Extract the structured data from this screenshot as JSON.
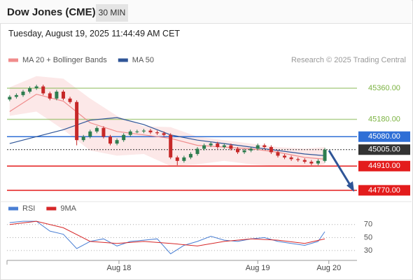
{
  "header": {
    "title": "Dow Jones (CME)",
    "timeframe": "30 MIN",
    "timestamp": "Tuesday, August 19, 2025 11:44:49 AM CET"
  },
  "chart_data": [
    {
      "type": "candlestick",
      "credit": "Research © 2025 Trading Central",
      "xlim": [
        -0.4,
        51.8
      ],
      "ylim": [
        44717,
        45465
      ],
      "up_color": "#2e7d4f",
      "down_color": "#c62828",
      "candles": {
        "open": [
          45295,
          45310,
          45320,
          45340,
          45360,
          45370,
          45330,
          45300,
          45340,
          45300,
          45280,
          45060,
          45080,
          45110,
          45130,
          45080,
          45040,
          45060,
          45090,
          45110,
          45110,
          45115,
          45105,
          45100,
          45090,
          44960,
          44940,
          44960,
          44980,
          45010,
          45030,
          45040,
          45020,
          45030,
          45010,
          44990,
          45000,
          45010,
          45030,
          45020,
          44990,
          44970,
          44960,
          44950,
          44945,
          44935,
          44925,
          44940
        ],
        "high": [
          45320,
          45330,
          45350,
          45370,
          45380,
          45380,
          45340,
          45350,
          45350,
          45310,
          45290,
          45090,
          45120,
          45140,
          45140,
          45090,
          45070,
          45100,
          45120,
          45120,
          45125,
          45125,
          45115,
          45110,
          45100,
          44970,
          44970,
          44990,
          45020,
          45040,
          45050,
          45050,
          45040,
          45040,
          45020,
          45010,
          45020,
          45040,
          45040,
          45030,
          45000,
          44980,
          44970,
          44960,
          44955,
          44945,
          44950,
          45015
        ],
        "low": [
          45285,
          45300,
          45310,
          45330,
          45350,
          45320,
          45290,
          45290,
          45290,
          45270,
          45030,
          45050,
          45070,
          45100,
          45070,
          45030,
          45030,
          45050,
          45080,
          45100,
          45100,
          45095,
          45090,
          45080,
          44950,
          44915,
          44930,
          44950,
          44970,
          45000,
          45020,
          45010,
          45010,
          45000,
          44980,
          44980,
          44990,
          45000,
          45010,
          44980,
          44960,
          44950,
          44940,
          44935,
          44925,
          44915,
          44915,
          44930
        ],
        "close": [
          45310,
          45320,
          45340,
          45360,
          45370,
          45330,
          45300,
          45340,
          45300,
          45280,
          45060,
          45080,
          45110,
          45130,
          45080,
          45040,
          45060,
          45090,
          45110,
          45110,
          45115,
          45105,
          45100,
          45090,
          44960,
          44940,
          44960,
          44980,
          45010,
          45030,
          45040,
          45020,
          45030,
          45010,
          44990,
          45000,
          45010,
          45030,
          45020,
          44990,
          44970,
          44960,
          44950,
          44945,
          44935,
          44925,
          44940,
          45005
        ]
      },
      "series": [
        {
          "name": "MA 20 + Bollinger Bands",
          "color": "#f08c8c",
          "x": [
            0,
            4,
            8,
            12,
            16,
            20,
            24,
            28,
            32,
            36,
            40,
            44,
            47
          ],
          "values": [
            45225,
            45325,
            45285,
            45160,
            45110,
            45090,
            45070,
            45030,
            45020,
            45010,
            44990,
            44960,
            44950
          ],
          "upper": [
            45365,
            45430,
            45415,
            45300,
            45200,
            45140,
            45135,
            45080,
            45060,
            45040,
            45020,
            45010,
            45020
          ],
          "lower": [
            45200,
            45225,
            45120,
            45000,
            44970,
            44980,
            44910,
            44920,
            44940,
            44920,
            44910,
            44900,
            44920
          ]
        },
        {
          "name": "MA 50",
          "color": "#2f5597",
          "x": [
            0,
            4,
            8,
            12,
            16,
            20,
            24,
            28,
            32,
            36,
            40,
            44,
            47
          ],
          "values": [
            45040,
            45080,
            45120,
            45175,
            45190,
            45150,
            45090,
            45060,
            45040,
            45020,
            45000,
            44980,
            44970
          ]
        }
      ],
      "levels": [
        {
          "value": 45360,
          "label": "45360.00",
          "color": "#7cb342",
          "boxed": false,
          "line": "solid"
        },
        {
          "value": 45180,
          "label": "45180.00",
          "color": "#7cb342",
          "boxed": false,
          "line": "solid"
        },
        {
          "value": 45080,
          "label": "45080.00",
          "color": "#2f6fd6",
          "boxed": true,
          "line": "solid"
        },
        {
          "value": 45005,
          "label": "45005.00",
          "color": "#333333",
          "boxed": true,
          "line": "dotted"
        },
        {
          "value": 44910,
          "label": "44910.00",
          "color": "#e31c1c",
          "boxed": true,
          "line": "solid"
        },
        {
          "value": 44770,
          "label": "44770.00",
          "color": "#e31c1c",
          "boxed": true,
          "line": "solid"
        }
      ]
    },
    {
      "type": "line",
      "xlim": [
        -0.4,
        51.8
      ],
      "ylim": [
        17,
        87
      ],
      "yticks": [
        30,
        50,
        70
      ],
      "grid": true,
      "xticks": [
        {
          "value": 16.3,
          "label": "Aug 18"
        },
        {
          "value": 37,
          "label": "Aug 19"
        },
        {
          "value": 47.6,
          "label": "Aug 20"
        }
      ],
      "series": [
        {
          "name": "RSI",
          "color": "#4a7fd4",
          "x": [
            0,
            2,
            4,
            6,
            8,
            10,
            12,
            14,
            16,
            18,
            20,
            22,
            24,
            26,
            28,
            30,
            32,
            34,
            36,
            38,
            40,
            42,
            44,
            46,
            47
          ],
          "values": [
            73,
            75,
            75,
            60,
            55,
            33,
            44,
            48,
            37,
            44,
            46,
            48,
            25,
            38,
            44,
            52,
            46,
            44,
            48,
            50,
            44,
            41,
            38,
            44,
            59
          ]
        },
        {
          "name": "9MA",
          "color": "#d62728",
          "x": [
            0,
            4,
            8,
            12,
            16,
            20,
            24,
            28,
            32,
            36,
            40,
            44,
            47
          ],
          "values": [
            70,
            75,
            65,
            44,
            41,
            44,
            41,
            37,
            44,
            48,
            46,
            41,
            48
          ]
        }
      ]
    }
  ]
}
